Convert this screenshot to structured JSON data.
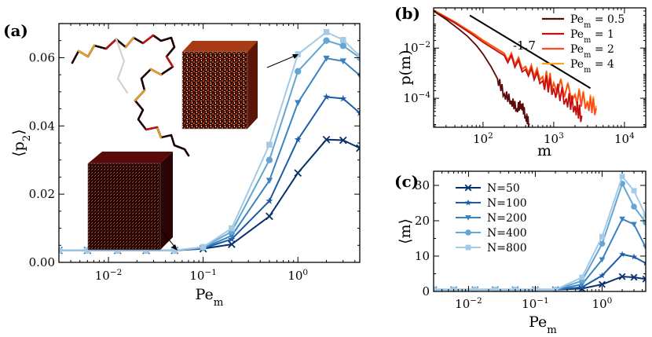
{
  "chart_data": [
    {
      "panel": "(a)",
      "type": "line",
      "xscale": "log",
      "xlabel": "Pe",
      "xlabel_sub": "m",
      "ylabel": "⟨p",
      "ylabel_sub": "2",
      "ylabel_close": "⟩",
      "xlim": [
        0.003,
        4.5
      ],
      "ylim": [
        0.0,
        0.07
      ],
      "xticks": [
        {
          "v": 0.01,
          "base": "10",
          "exp": "−2"
        },
        {
          "v": 0.1,
          "base": "10",
          "exp": "−1"
        },
        {
          "v": 1,
          "base": "10",
          "exp": "0"
        }
      ],
      "yticks": [
        {
          "v": 0.0,
          "label": "0.00"
        },
        {
          "v": 0.02,
          "label": "0.02"
        },
        {
          "v": 0.04,
          "label": "0.04"
        },
        {
          "v": 0.06,
          "label": "0.06"
        }
      ],
      "x": [
        0.003,
        0.006,
        0.0125,
        0.025,
        0.05,
        0.1,
        0.2,
        0.5,
        1.0,
        2.0,
        3.0,
        4.5
      ],
      "series": [
        {
          "name": "N=50",
          "color": "#08306b",
          "marker": "x",
          "values": [
            0.0035,
            0.0035,
            0.0035,
            0.0035,
            0.0035,
            0.004,
            0.0053,
            0.0135,
            0.0262,
            0.036,
            0.0358,
            0.0335
          ]
        },
        {
          "name": "N=100",
          "color": "#1c5ba6",
          "marker": "star",
          "values": [
            0.0035,
            0.0035,
            0.0035,
            0.0035,
            0.0035,
            0.0041,
            0.0068,
            0.018,
            0.036,
            0.0485,
            0.048,
            0.0438
          ]
        },
        {
          "name": "N=200",
          "color": "#3a82c0",
          "marker": "tri",
          "values": [
            0.0035,
            0.0035,
            0.0035,
            0.0035,
            0.0035,
            0.0042,
            0.0078,
            0.024,
            0.0468,
            0.0598,
            0.059,
            0.0548
          ]
        },
        {
          "name": "N=400",
          "color": "#63a5d3",
          "marker": "circle",
          "values": [
            0.0035,
            0.0035,
            0.0035,
            0.0035,
            0.0035,
            0.0044,
            0.009,
            0.03,
            0.056,
            0.065,
            0.0635,
            0.06
          ]
        },
        {
          "name": "N=800",
          "color": "#a4cae6",
          "marker": "square",
          "values": [
            0.0035,
            0.0035,
            0.0035,
            0.0035,
            0.0035,
            0.0045,
            0.01,
            0.0345,
            0.061,
            0.0675,
            0.0652,
            0.0605
          ]
        }
      ]
    },
    {
      "panel": "(b)",
      "type": "line",
      "xscale": "log",
      "yscale": "log",
      "xlabel": "m",
      "ylabel": "p(m)",
      "xlim": [
        20,
        20000
      ],
      "ylim": [
        7e-06,
        0.4
      ],
      "xticks": [
        {
          "v": 100,
          "base": "10",
          "exp": "2"
        },
        {
          "v": 1000,
          "base": "10",
          "exp": "3"
        },
        {
          "v": 10000,
          "base": "10",
          "exp": "4"
        }
      ],
      "yticks": [
        {
          "v": 0.0001,
          "base": "10",
          "exp": "−4"
        },
        {
          "v": 0.01,
          "base": "10",
          "exp": "−2"
        }
      ],
      "guide_line": {
        "label": "-1.7",
        "slope": -1.7,
        "x": [
          65,
          3300
        ],
        "y_start": 0.2
      },
      "series": [
        {
          "name": "Pe_m = 0.5",
          "color": "#5a0a0a",
          "x": [
            20,
            30,
            45,
            60,
            80,
            100,
            130,
            160,
            200,
            250,
            300,
            350,
            400,
            450
          ],
          "values": [
            0.3,
            0.14,
            0.058,
            0.03,
            0.013,
            0.0058,
            0.0018,
            0.0006,
            0.00015,
            8e-05,
            4e-05,
            6e-05,
            2e-05,
            1e-05
          ]
        },
        {
          "name": "Pe_m = 1",
          "color": "#c40f0f",
          "x": [
            20,
            40,
            70,
            100,
            200,
            400,
            700,
            1000,
            1500,
            2000,
            2500
          ],
          "values": [
            0.3,
            0.1,
            0.035,
            0.017,
            0.005,
            0.0014,
            0.0005,
            0.00025,
            0.0001,
            5e-05,
            2e-05
          ]
        },
        {
          "name": "Pe_m = 2",
          "color": "#ff4a1c",
          "x": [
            20,
            40,
            70,
            100,
            200,
            400,
            700,
            1000,
            2000,
            3000,
            4000
          ],
          "values": [
            0.32,
            0.11,
            0.04,
            0.02,
            0.006,
            0.0018,
            0.0007,
            0.0004,
            0.00013,
            7e-05,
            4e-05
          ]
        },
        {
          "name": "Pe_m = 4",
          "color": "#ffa31a",
          "x": [
            20,
            40,
            70,
            100,
            200,
            400,
            700,
            1000,
            2000,
            3000,
            4000
          ],
          "values": [
            0.33,
            0.11,
            0.042,
            0.021,
            0.0062,
            0.0019,
            0.00075,
            0.00042,
            0.00015,
            8e-05,
            5e-05
          ]
        }
      ]
    },
    {
      "panel": "(c)",
      "type": "line",
      "xscale": "log",
      "xlabel": "Pe",
      "xlabel_sub": "m",
      "ylabel": "⟨m⟩",
      "xlim": [
        0.003,
        4.5
      ],
      "ylim": [
        0,
        34
      ],
      "xticks": [
        {
          "v": 0.01,
          "base": "10",
          "exp": "−2"
        },
        {
          "v": 0.1,
          "base": "10",
          "exp": "−1"
        },
        {
          "v": 1,
          "base": "10",
          "exp": "0"
        }
      ],
      "yticks": [
        {
          "v": 0,
          "label": "0"
        },
        {
          "v": 10,
          "label": "10"
        },
        {
          "v": 20,
          "label": "20"
        },
        {
          "v": 30,
          "label": "30"
        }
      ],
      "x": [
        0.003,
        0.006,
        0.0125,
        0.025,
        0.05,
        0.1,
        0.2,
        0.5,
        1.0,
        2.0,
        3.0,
        4.5
      ],
      "series": [
        {
          "name": "N=50",
          "color": "#08306b",
          "marker": "x",
          "values": [
            0.5,
            0.5,
            0.5,
            0.5,
            0.5,
            0.5,
            0.5,
            0.8,
            2.0,
            4.2,
            4.0,
            3.5
          ]
        },
        {
          "name": "N=100",
          "color": "#1c5ba6",
          "marker": "star",
          "values": [
            0.5,
            0.5,
            0.5,
            0.5,
            0.5,
            0.5,
            0.5,
            1.2,
            4.5,
            10.5,
            9.8,
            8.0
          ]
        },
        {
          "name": "N=200",
          "color": "#3a82c0",
          "marker": "tri",
          "values": [
            0.5,
            0.5,
            0.5,
            0.5,
            0.5,
            0.5,
            0.5,
            2.0,
            9.0,
            20.5,
            19.0,
            12.5
          ]
        },
        {
          "name": "N=400",
          "color": "#63a5d3",
          "marker": "circle",
          "values": [
            0.5,
            0.5,
            0.5,
            0.5,
            0.5,
            0.5,
            0.5,
            3.0,
            13.5,
            30.5,
            24.0,
            19.5
          ]
        },
        {
          "name": "N=800",
          "color": "#a4cae6",
          "marker": "square",
          "values": [
            0.5,
            0.5,
            0.5,
            0.5,
            0.5,
            0.5,
            0.5,
            4.0,
            15.5,
            32.5,
            28.5,
            21.5
          ]
        }
      ],
      "legend": [
        "N=50",
        "N=100",
        "N=200",
        "N=400",
        "N=800"
      ]
    }
  ],
  "legend_b": [
    "Pe",
    "= 0.5",
    "= 1",
    "= 2",
    "= 4"
  ],
  "legend_b_sub": "m",
  "panel_labels": [
    "(a)",
    "(b)",
    "(c)"
  ]
}
